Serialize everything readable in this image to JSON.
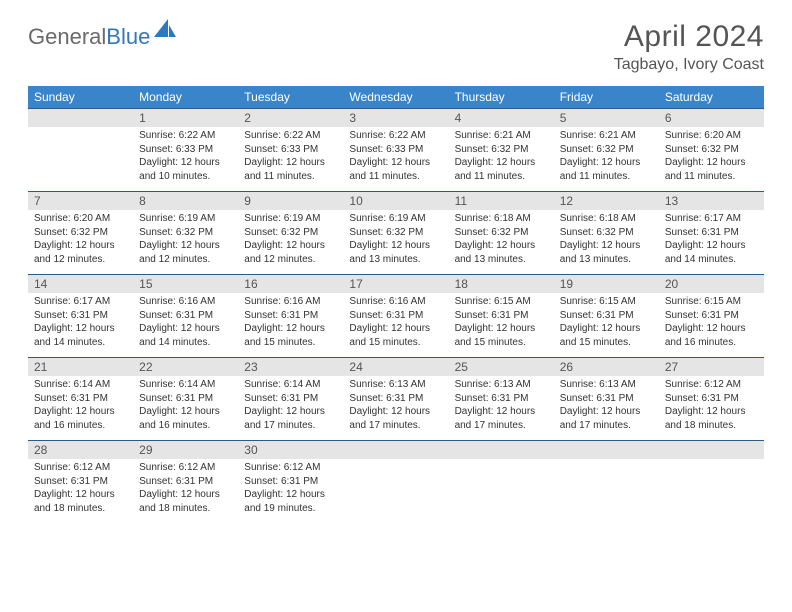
{
  "logo": {
    "text1": "General",
    "text2": "Blue",
    "shape_color": "#2f78bf"
  },
  "title": "April 2024",
  "location": "Tagbayo, Ivory Coast",
  "colors": {
    "header_bg": "#3a85c9",
    "header_text": "#ffffff",
    "daynum_bg": "#e5e5e5",
    "rule": "#2b5b86",
    "body_text": "#333333",
    "title_text": "#555555"
  },
  "day_names": [
    "Sunday",
    "Monday",
    "Tuesday",
    "Wednesday",
    "Thursday",
    "Friday",
    "Saturday"
  ],
  "weeks": [
    {
      "nums": [
        "",
        "1",
        "2",
        "3",
        "4",
        "5",
        "6"
      ],
      "cells": [
        null,
        {
          "sunrise": "Sunrise: 6:22 AM",
          "sunset": "Sunset: 6:33 PM",
          "day1": "Daylight: 12 hours",
          "day2": "and 10 minutes."
        },
        {
          "sunrise": "Sunrise: 6:22 AM",
          "sunset": "Sunset: 6:33 PM",
          "day1": "Daylight: 12 hours",
          "day2": "and 11 minutes."
        },
        {
          "sunrise": "Sunrise: 6:22 AM",
          "sunset": "Sunset: 6:33 PM",
          "day1": "Daylight: 12 hours",
          "day2": "and 11 minutes."
        },
        {
          "sunrise": "Sunrise: 6:21 AM",
          "sunset": "Sunset: 6:32 PM",
          "day1": "Daylight: 12 hours",
          "day2": "and 11 minutes."
        },
        {
          "sunrise": "Sunrise: 6:21 AM",
          "sunset": "Sunset: 6:32 PM",
          "day1": "Daylight: 12 hours",
          "day2": "and 11 minutes."
        },
        {
          "sunrise": "Sunrise: 6:20 AM",
          "sunset": "Sunset: 6:32 PM",
          "day1": "Daylight: 12 hours",
          "day2": "and 11 minutes."
        }
      ]
    },
    {
      "nums": [
        "7",
        "8",
        "9",
        "10",
        "11",
        "12",
        "13"
      ],
      "cells": [
        {
          "sunrise": "Sunrise: 6:20 AM",
          "sunset": "Sunset: 6:32 PM",
          "day1": "Daylight: 12 hours",
          "day2": "and 12 minutes."
        },
        {
          "sunrise": "Sunrise: 6:19 AM",
          "sunset": "Sunset: 6:32 PM",
          "day1": "Daylight: 12 hours",
          "day2": "and 12 minutes."
        },
        {
          "sunrise": "Sunrise: 6:19 AM",
          "sunset": "Sunset: 6:32 PM",
          "day1": "Daylight: 12 hours",
          "day2": "and 12 minutes."
        },
        {
          "sunrise": "Sunrise: 6:19 AM",
          "sunset": "Sunset: 6:32 PM",
          "day1": "Daylight: 12 hours",
          "day2": "and 13 minutes."
        },
        {
          "sunrise": "Sunrise: 6:18 AM",
          "sunset": "Sunset: 6:32 PM",
          "day1": "Daylight: 12 hours",
          "day2": "and 13 minutes."
        },
        {
          "sunrise": "Sunrise: 6:18 AM",
          "sunset": "Sunset: 6:32 PM",
          "day1": "Daylight: 12 hours",
          "day2": "and 13 minutes."
        },
        {
          "sunrise": "Sunrise: 6:17 AM",
          "sunset": "Sunset: 6:31 PM",
          "day1": "Daylight: 12 hours",
          "day2": "and 14 minutes."
        }
      ]
    },
    {
      "nums": [
        "14",
        "15",
        "16",
        "17",
        "18",
        "19",
        "20"
      ],
      "cells": [
        {
          "sunrise": "Sunrise: 6:17 AM",
          "sunset": "Sunset: 6:31 PM",
          "day1": "Daylight: 12 hours",
          "day2": "and 14 minutes."
        },
        {
          "sunrise": "Sunrise: 6:16 AM",
          "sunset": "Sunset: 6:31 PM",
          "day1": "Daylight: 12 hours",
          "day2": "and 14 minutes."
        },
        {
          "sunrise": "Sunrise: 6:16 AM",
          "sunset": "Sunset: 6:31 PM",
          "day1": "Daylight: 12 hours",
          "day2": "and 15 minutes."
        },
        {
          "sunrise": "Sunrise: 6:16 AM",
          "sunset": "Sunset: 6:31 PM",
          "day1": "Daylight: 12 hours",
          "day2": "and 15 minutes."
        },
        {
          "sunrise": "Sunrise: 6:15 AM",
          "sunset": "Sunset: 6:31 PM",
          "day1": "Daylight: 12 hours",
          "day2": "and 15 minutes."
        },
        {
          "sunrise": "Sunrise: 6:15 AM",
          "sunset": "Sunset: 6:31 PM",
          "day1": "Daylight: 12 hours",
          "day2": "and 15 minutes."
        },
        {
          "sunrise": "Sunrise: 6:15 AM",
          "sunset": "Sunset: 6:31 PM",
          "day1": "Daylight: 12 hours",
          "day2": "and 16 minutes."
        }
      ]
    },
    {
      "nums": [
        "21",
        "22",
        "23",
        "24",
        "25",
        "26",
        "27"
      ],
      "cells": [
        {
          "sunrise": "Sunrise: 6:14 AM",
          "sunset": "Sunset: 6:31 PM",
          "day1": "Daylight: 12 hours",
          "day2": "and 16 minutes."
        },
        {
          "sunrise": "Sunrise: 6:14 AM",
          "sunset": "Sunset: 6:31 PM",
          "day1": "Daylight: 12 hours",
          "day2": "and 16 minutes."
        },
        {
          "sunrise": "Sunrise: 6:14 AM",
          "sunset": "Sunset: 6:31 PM",
          "day1": "Daylight: 12 hours",
          "day2": "and 17 minutes."
        },
        {
          "sunrise": "Sunrise: 6:13 AM",
          "sunset": "Sunset: 6:31 PM",
          "day1": "Daylight: 12 hours",
          "day2": "and 17 minutes."
        },
        {
          "sunrise": "Sunrise: 6:13 AM",
          "sunset": "Sunset: 6:31 PM",
          "day1": "Daylight: 12 hours",
          "day2": "and 17 minutes."
        },
        {
          "sunrise": "Sunrise: 6:13 AM",
          "sunset": "Sunset: 6:31 PM",
          "day1": "Daylight: 12 hours",
          "day2": "and 17 minutes."
        },
        {
          "sunrise": "Sunrise: 6:12 AM",
          "sunset": "Sunset: 6:31 PM",
          "day1": "Daylight: 12 hours",
          "day2": "and 18 minutes."
        }
      ]
    },
    {
      "nums": [
        "28",
        "29",
        "30",
        "",
        "",
        "",
        ""
      ],
      "cells": [
        {
          "sunrise": "Sunrise: 6:12 AM",
          "sunset": "Sunset: 6:31 PM",
          "day1": "Daylight: 12 hours",
          "day2": "and 18 minutes."
        },
        {
          "sunrise": "Sunrise: 6:12 AM",
          "sunset": "Sunset: 6:31 PM",
          "day1": "Daylight: 12 hours",
          "day2": "and 18 minutes."
        },
        {
          "sunrise": "Sunrise: 6:12 AM",
          "sunset": "Sunset: 6:31 PM",
          "day1": "Daylight: 12 hours",
          "day2": "and 19 minutes."
        },
        null,
        null,
        null,
        null
      ]
    }
  ]
}
